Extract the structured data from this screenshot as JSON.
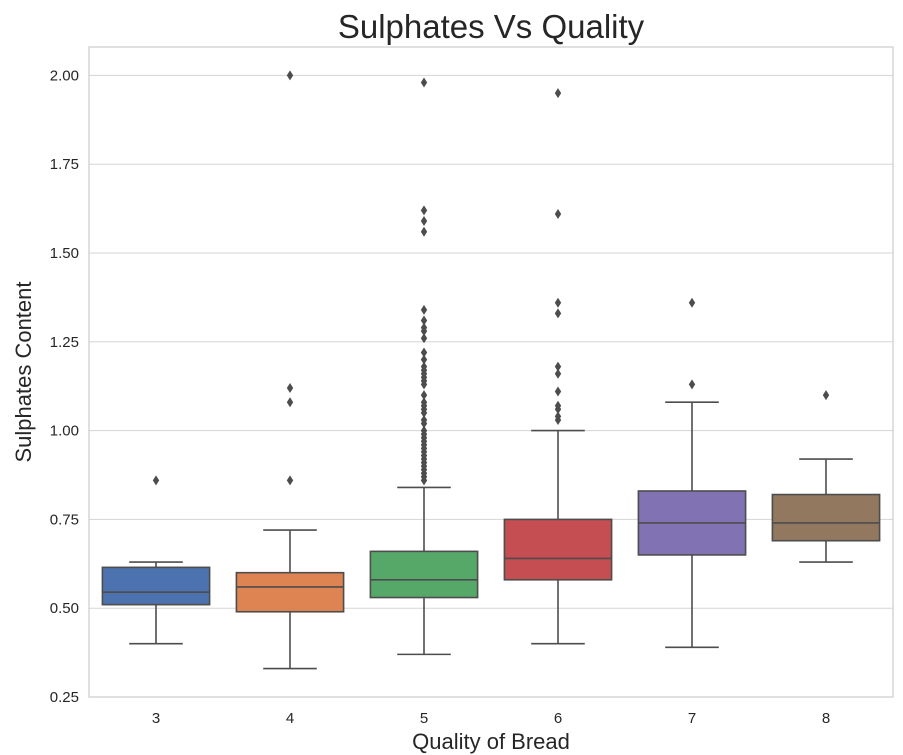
{
  "chart_data": {
    "type": "box",
    "title": "Sulphates Vs Quality",
    "xlabel": "Quality of Bread",
    "ylabel": "Sulphates Content",
    "ylim": [
      0.25,
      2.08
    ],
    "yticks": [
      "0.25",
      "0.50",
      "0.75",
      "1.00",
      "1.25",
      "1.50",
      "1.75",
      "2.00"
    ],
    "grid": true,
    "categories": [
      "3",
      "4",
      "5",
      "6",
      "7",
      "8"
    ],
    "boxes": [
      {
        "category": "3",
        "color": "#4C72B0",
        "whisker_low": 0.4,
        "q1": 0.51,
        "median": 0.545,
        "q3": 0.615,
        "whisker_high": 0.63,
        "outliers": [
          0.86
        ]
      },
      {
        "category": "4",
        "color": "#DD8452",
        "whisker_low": 0.33,
        "q1": 0.49,
        "median": 0.56,
        "q3": 0.6,
        "whisker_high": 0.72,
        "outliers": [
          0.86,
          1.08,
          1.12,
          2.0
        ]
      },
      {
        "category": "5",
        "color": "#55A868",
        "whisker_low": 0.37,
        "q1": 0.53,
        "median": 0.58,
        "q3": 0.66,
        "whisker_high": 0.84,
        "outliers": [
          0.86,
          0.87,
          0.88,
          0.89,
          0.9,
          0.91,
          0.92,
          0.93,
          0.94,
          0.95,
          0.96,
          0.97,
          0.98,
          0.99,
          1.0,
          1.02,
          1.03,
          1.05,
          1.06,
          1.07,
          1.08,
          1.1,
          1.13,
          1.14,
          1.15,
          1.16,
          1.17,
          1.18,
          1.2,
          1.22,
          1.26,
          1.28,
          1.29,
          1.31,
          1.34,
          1.56,
          1.59,
          1.62,
          1.98
        ]
      },
      {
        "category": "6",
        "color": "#C44E52",
        "whisker_low": 0.4,
        "q1": 0.58,
        "median": 0.64,
        "q3": 0.75,
        "whisker_high": 1.0,
        "outliers": [
          1.03,
          1.04,
          1.06,
          1.07,
          1.11,
          1.16,
          1.18,
          1.33,
          1.36,
          1.61,
          1.95
        ]
      },
      {
        "category": "7",
        "color": "#8172B3",
        "whisker_low": 0.39,
        "q1": 0.65,
        "median": 0.74,
        "q3": 0.83,
        "whisker_high": 1.08,
        "outliers": [
          1.13,
          1.36
        ]
      },
      {
        "category": "8",
        "color": "#937860",
        "whisker_low": 0.63,
        "q1": 0.69,
        "median": 0.74,
        "q3": 0.82,
        "whisker_high": 0.92,
        "outliers": [
          1.1
        ]
      }
    ],
    "line_color": "#4d4d4d",
    "grid_color": "#d5d5d5",
    "frame_color": "#cccccc"
  }
}
